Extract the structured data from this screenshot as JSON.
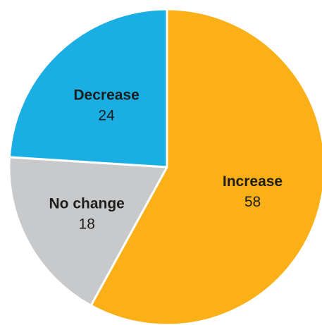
{
  "chart_data": {
    "type": "pie",
    "title": "",
    "start_angle_deg": 0,
    "direction": "clockwise",
    "slices": [
      {
        "label": "Increase",
        "value": 58,
        "value_text": "58",
        "color": "#fbb017"
      },
      {
        "label": "No change",
        "value": 18,
        "value_text": "18",
        "color": "#c8c9cb"
      },
      {
        "label": "Decrease",
        "value": 24,
        "value_text": "24",
        "color": "#1aaee3"
      }
    ]
  }
}
